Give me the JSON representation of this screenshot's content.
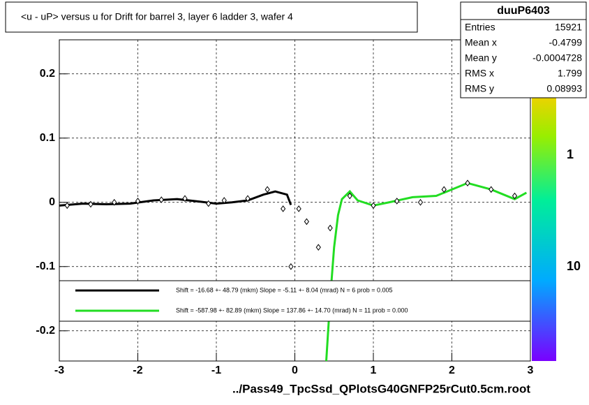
{
  "chart_data": {
    "type": "profile",
    "title": "<u - uP>       versus   u for Drift for barrel 3, layer 6 ladder 3, wafer 4",
    "x_label": "../Pass49_TpcSsd_QPlotsG40GNFP25rCut0.5cm.root",
    "xlim": [
      -3,
      3
    ],
    "xticks": [
      -3,
      -2,
      -1,
      0,
      1,
      2,
      3
    ],
    "ylim": [
      -0.247,
      0.253
    ],
    "yticks": [
      -0.2,
      -0.1,
      0,
      0.1,
      0.2
    ],
    "grid": true,
    "palette_labels": [
      "1",
      "10"
    ],
    "stats": {
      "name": "duuP6403",
      "rows": [
        [
          "Entries",
          "15921"
        ],
        [
          "Mean x",
          "-0.4799"
        ],
        [
          "Mean y",
          "-0.0004728"
        ],
        [
          "RMS x",
          "1.799"
        ],
        [
          "RMS y",
          "0.08993"
        ]
      ]
    },
    "series": [
      {
        "name": "Shift =   -16.68 +- 48.79 (mkm) Slope =    -5.11 +- 8.04 (mrad)  N = 6 prob = 0.005",
        "color": "#000000",
        "x": [
          -3,
          -2.7,
          -2.4,
          -2.1,
          -1.8,
          -1.5,
          -1.2,
          -1,
          -0.8,
          -0.6,
          -0.4,
          -0.25,
          -0.1,
          -0.05
        ],
        "values": [
          -0.005,
          -0.002,
          -0.003,
          -0.002,
          0.003,
          0.005,
          0.001,
          -0.002,
          0.0,
          0.003,
          0.012,
          0.017,
          0.012,
          -0.004
        ]
      },
      {
        "name": "Shift =  -587.98 +- 82.89 (mkm) Slope =   137.86 +- 14.70 (mrad)  N = 11 prob = 0.000",
        "color": "#22dd22",
        "x": [
          0.4,
          0.45,
          0.5,
          0.55,
          0.6,
          0.7,
          0.8,
          1.0,
          1.2,
          1.5,
          1.8,
          2.0,
          2.2,
          2.5,
          2.8,
          2.95
        ],
        "values": [
          -0.247,
          -0.15,
          -0.07,
          -0.02,
          0.005,
          0.017,
          0.003,
          -0.005,
          0.0,
          0.008,
          0.01,
          0.02,
          0.03,
          0.02,
          0.005,
          0.015
        ]
      },
      {
        "name": "profile",
        "color": "#000000",
        "x": [
          -2.9,
          -2.6,
          -2.3,
          -2.0,
          -1.7,
          -1.4,
          -1.1,
          -0.9,
          -0.6,
          -0.35,
          -0.15,
          -0.05,
          0.05,
          0.15,
          0.3,
          0.45,
          0.7,
          1.0,
          1.3,
          1.6,
          1.9,
          2.2,
          2.5,
          2.8
        ],
        "values": [
          -0.005,
          -0.003,
          0.0,
          0.002,
          0.004,
          0.006,
          -0.002,
          0.003,
          0.006,
          0.02,
          -0.01,
          -0.1,
          -0.01,
          -0.03,
          -0.07,
          -0.04,
          0.01,
          -0.005,
          0.002,
          0.0,
          0.02,
          0.03,
          0.02,
          0.01
        ]
      }
    ]
  }
}
